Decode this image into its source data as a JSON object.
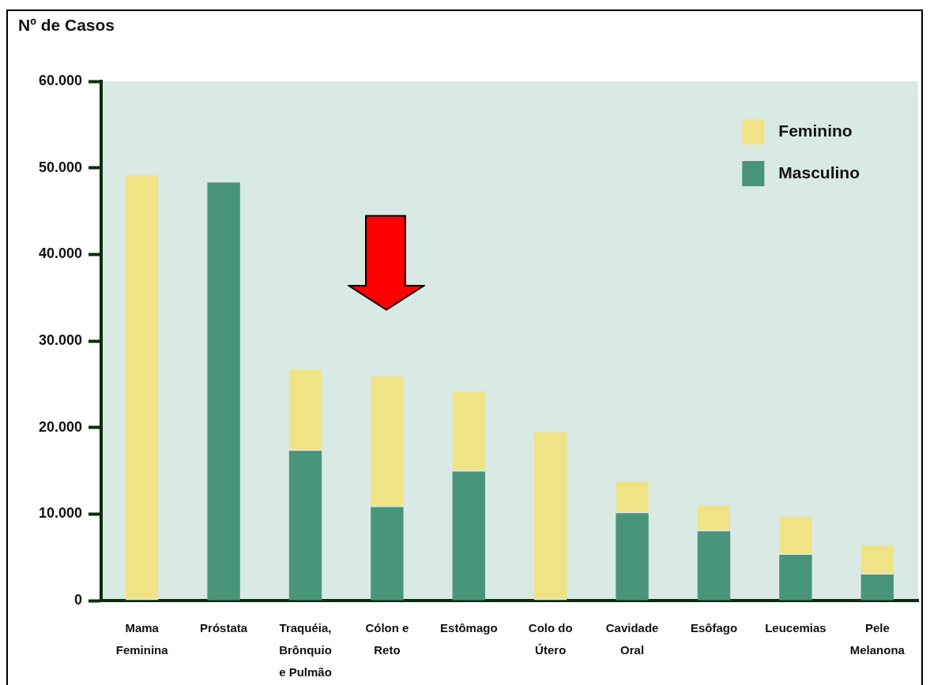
{
  "chart_data": {
    "type": "bar",
    "ylabel": "Nº de Casos",
    "categories": [
      "Mama\nFeminina",
      "Próstata",
      "Traquéia,\nBrônquio\ne Pulmão",
      "Cólon e\nReto",
      "Estômago",
      "Colo do\nÚtero",
      "Cavidade\nOral",
      "Esôfago",
      "Leucemias",
      "Pele\nMelanona"
    ],
    "series": [
      {
        "name": "Masculino",
        "color": "#48957a",
        "values": [
          null,
          48300,
          17300,
          10800,
          14900,
          null,
          10100,
          8000,
          5300,
          3000
        ]
      },
      {
        "name": "Feminino",
        "color": "#efe385",
        "values": [
          49200,
          null,
          9400,
          15100,
          9300,
          19500,
          3700,
          3000,
          4400,
          3400
        ]
      }
    ],
    "stacked": true,
    "ylim": [
      0,
      60000
    ],
    "yticks": [
      0,
      {
        "value": 10000,
        "label": "10.000"
      },
      {
        "value": 20000,
        "label": "20.000"
      },
      {
        "value": 30000,
        "label": "30.000"
      },
      {
        "value": 40000,
        "label": "40.000"
      },
      {
        "value": 50000,
        "label": "50.000"
      },
      {
        "value": 60000,
        "label": "60.000"
      }
    ],
    "legend": "top right"
  }
}
